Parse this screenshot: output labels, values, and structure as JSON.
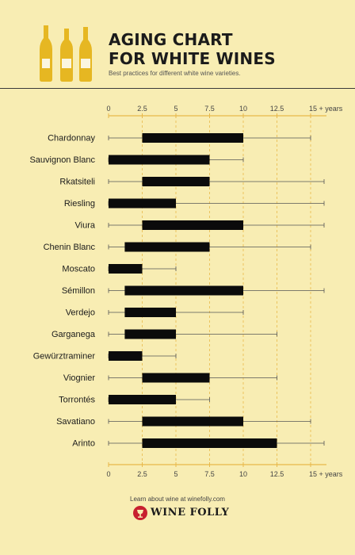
{
  "header": {
    "title_line1": "AGING CHART",
    "title_line2": "FOR WHITE WINES",
    "subtitle": "Best practices for different white wine varieties."
  },
  "footer": {
    "learn_text": "Learn about wine at winefolly.com",
    "brand": "WINE FOLLY"
  },
  "colors": {
    "background": "#f8edb3",
    "bar": "#0b0b0b",
    "axis": "#e8b84a",
    "gridline": "#e8b84a",
    "text": "#1b1b1b",
    "brand_red": "#c8202f",
    "bottle": "#e6b722"
  },
  "icons": [
    "wine-bottle-icon",
    "wine-folly-logo-icon"
  ],
  "chart_data": {
    "type": "bar",
    "orientation": "horizontal",
    "description_of_encoding": "thick bar = ideal aging window, thin whisker = maximum aging range",
    "x_ticks": [
      "0",
      "2.5",
      "5",
      "7.5",
      "10",
      "12.5",
      "15 + years"
    ],
    "x_tick_values": [
      0,
      2.5,
      5,
      7.5,
      10,
      12.5,
      15
    ],
    "xlim": [
      0,
      15
    ],
    "grid": "vertical dashed at ticks",
    "axes_positions": "top and bottom",
    "series": [
      {
        "label": "Chardonnay",
        "bar": [
          2.5,
          10
        ],
        "range": [
          0,
          15
        ]
      },
      {
        "label": "Sauvignon Blanc",
        "bar": [
          0,
          7.5
        ],
        "range": [
          0,
          10
        ]
      },
      {
        "label": "Rkatsiteli",
        "bar": [
          2.5,
          7.5
        ],
        "range": [
          0,
          16
        ]
      },
      {
        "label": "Riesling",
        "bar": [
          0,
          5
        ],
        "range": [
          0,
          16
        ]
      },
      {
        "label": "Viura",
        "bar": [
          2.5,
          10
        ],
        "range": [
          0,
          16
        ]
      },
      {
        "label": "Chenin Blanc",
        "bar": [
          1.2,
          7.5
        ],
        "range": [
          0,
          15
        ]
      },
      {
        "label": "Moscato",
        "bar": [
          0,
          2.5
        ],
        "range": [
          0,
          5
        ]
      },
      {
        "label": "Sémillon",
        "bar": [
          1.2,
          10
        ],
        "range": [
          0,
          16
        ]
      },
      {
        "label": "Verdejo",
        "bar": [
          1.2,
          5
        ],
        "range": [
          0,
          10
        ]
      },
      {
        "label": "Garganega",
        "bar": [
          1.2,
          5
        ],
        "range": [
          0,
          12.5
        ]
      },
      {
        "label": "Gewürztraminer",
        "bar": [
          0,
          2.5
        ],
        "range": [
          0,
          5
        ]
      },
      {
        "label": "Viognier",
        "bar": [
          2.5,
          7.5
        ],
        "range": [
          0,
          12.5
        ]
      },
      {
        "label": "Torrontés",
        "bar": [
          0,
          5
        ],
        "range": [
          0,
          7.5
        ]
      },
      {
        "label": "Savatiano",
        "bar": [
          2.5,
          10
        ],
        "range": [
          0,
          15
        ]
      },
      {
        "label": "Arinto",
        "bar": [
          2.5,
          12.5
        ],
        "range": [
          0,
          16
        ]
      }
    ]
  }
}
